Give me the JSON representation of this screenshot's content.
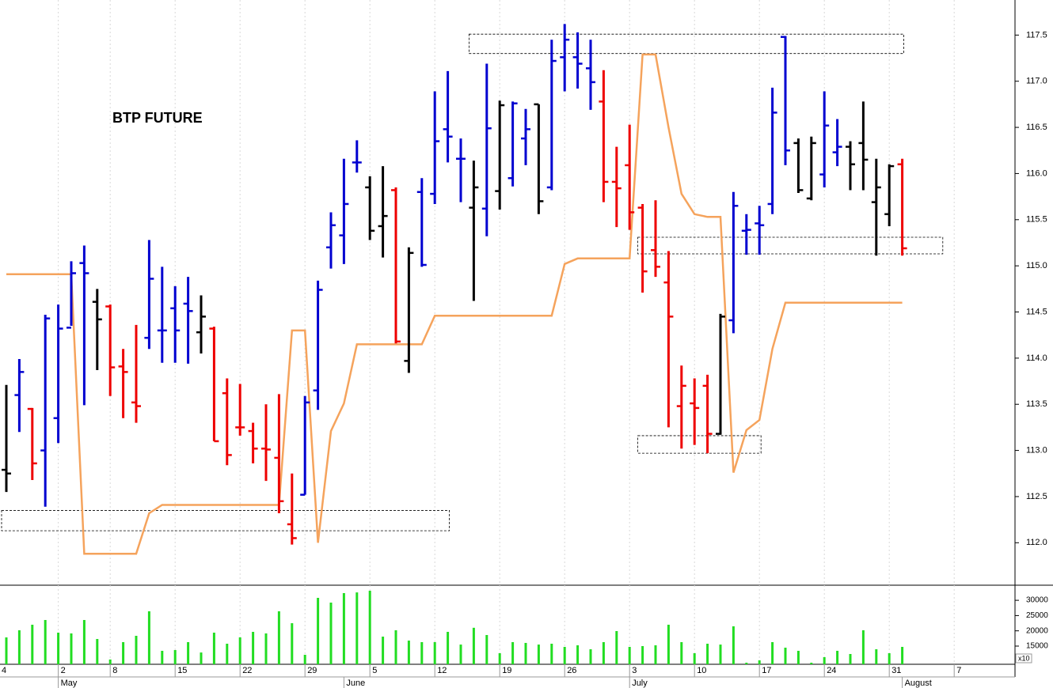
{
  "chart_data": {
    "type": "ohlc",
    "title": "BTP FUTURE",
    "categories": [
      "4",
      null,
      null,
      null,
      null,
      "2",
      null,
      null,
      null,
      "8",
      null,
      null,
      null,
      null,
      "15",
      null,
      null,
      null,
      null,
      "22",
      null,
      null,
      null,
      null,
      "29",
      null,
      null,
      null,
      null,
      "5",
      null,
      null,
      null,
      null,
      "12",
      null,
      null,
      null,
      null,
      "19",
      null,
      null,
      null,
      null,
      "26",
      null,
      null,
      null,
      null,
      "3",
      null,
      null,
      null,
      null,
      "10",
      null,
      null,
      null,
      null,
      "17",
      null,
      null,
      null,
      null,
      "24",
      null,
      null,
      null,
      null,
      "31",
      null,
      null,
      null,
      null,
      "7",
      null,
      null,
      null,
      null
    ],
    "months": [
      {
        "label": "May",
        "index": 5
      },
      {
        "label": "June",
        "index": 27
      },
      {
        "label": "July",
        "index": 49
      },
      {
        "label": "August",
        "index": 70
      }
    ],
    "open": [
      null,
      112.79,
      113.6,
      113.45,
      113.0,
      113.35,
      114.33,
      115.03,
      114.61,
      114.56,
      113.91,
      113.52,
      114.22,
      114.3,
      114.54,
      114.59,
      114.28,
      114.32,
      113.62,
      113.25,
      113.21,
      113.02,
      112.92,
      112.2,
      112.52,
      113.65,
      115.2,
      115.33,
      116.12,
      115.85,
      115.43,
      115.82,
      113.97,
      115.8,
      115.78,
      116.48,
      116.16,
      115.63,
      115.62,
      115.81,
      115.95,
      116.38,
      116.75,
      115.85,
      117.26,
      117.26,
      117.14,
      116.78,
      115.91,
      116.09,
      115.63,
      115.17,
      114.82,
      113.48,
      113.51,
      113.7,
      113.18,
      114.41,
      115.38,
      115.46,
      115.67,
      117.48,
      116.33,
      115.73,
      115.99,
      116.23,
      116.29,
      116.33,
      115.69,
      115.56,
      116.1,
      null,
      null,
      null,
      null,
      null,
      null,
      null,
      null
    ],
    "high": [
      null,
      113.71,
      113.99,
      113.46,
      114.47,
      114.58,
      115.05,
      115.22,
      114.75,
      114.58,
      114.1,
      114.36,
      115.28,
      114.99,
      114.78,
      114.88,
      114.68,
      114.34,
      113.78,
      113.72,
      113.3,
      113.5,
      113.61,
      112.75,
      113.59,
      114.84,
      115.58,
      116.16,
      116.36,
      115.97,
      116.08,
      115.85,
      115.2,
      115.95,
      116.89,
      117.11,
      116.38,
      116.14,
      117.19,
      116.79,
      116.78,
      116.7,
      116.75,
      117.45,
      117.62,
      117.53,
      117.45,
      117.12,
      116.29,
      116.53,
      115.67,
      115.71,
      115.16,
      113.92,
      113.78,
      113.82,
      114.48,
      115.8,
      115.56,
      115.65,
      116.93,
      117.49,
      116.38,
      116.4,
      116.89,
      116.59,
      116.35,
      116.78,
      116.16,
      116.1,
      116.16,
      null,
      null,
      null,
      null,
      null,
      null,
      null,
      null
    ],
    "low": [
      null,
      112.55,
      113.2,
      112.68,
      112.39,
      113.08,
      114.35,
      113.49,
      113.87,
      113.59,
      113.35,
      113.3,
      114.1,
      113.95,
      113.95,
      113.94,
      114.05,
      113.1,
      112.84,
      113.16,
      112.86,
      112.67,
      112.32,
      111.98,
      112.52,
      113.44,
      114.97,
      115.02,
      116.01,
      115.28,
      115.09,
      114.16,
      113.84,
      114.99,
      115.67,
      116.12,
      115.69,
      114.62,
      115.32,
      115.61,
      115.86,
      116.09,
      115.56,
      115.82,
      116.89,
      116.92,
      116.69,
      115.69,
      115.42,
      115.39,
      114.71,
      114.88,
      113.25,
      113.02,
      113.06,
      112.97,
      113.17,
      114.27,
      115.12,
      115.12,
      115.56,
      116.09,
      115.79,
      115.71,
      115.85,
      116.08,
      115.82,
      115.82,
      115.11,
      115.43,
      115.11,
      null,
      null,
      null,
      null,
      null,
      null,
      null,
      null
    ],
    "close": [
      null,
      112.75,
      113.85,
      112.86,
      114.43,
      114.32,
      114.92,
      114.92,
      114.42,
      113.9,
      113.85,
      113.48,
      114.86,
      114.3,
      114.3,
      114.51,
      114.45,
      113.1,
      112.95,
      113.25,
      113.02,
      113.01,
      112.45,
      112.05,
      113.52,
      114.74,
      115.44,
      115.67,
      116.12,
      115.38,
      115.54,
      114.18,
      115.14,
      115.01,
      116.35,
      116.4,
      116.16,
      115.85,
      116.49,
      116.74,
      116.76,
      116.48,
      115.7,
      117.22,
      117.45,
      117.19,
      116.99,
      115.91,
      115.84,
      115.58,
      114.94,
      114.99,
      114.45,
      113.7,
      113.46,
      113.18,
      114.45,
      115.65,
      115.39,
      115.44,
      116.66,
      116.25,
      115.82,
      116.33,
      116.52,
      116.29,
      116.1,
      116.15,
      115.85,
      116.08,
      115.19,
      null,
      null,
      null,
      null,
      null,
      null,
      null,
      null
    ],
    "bar_colors": [
      null,
      "#000000",
      "#0000d0",
      "#ee0000",
      "#0000d0",
      "#0000d0",
      "#0000d0",
      "#0000d0",
      "#000000",
      "#ee0000",
      "#ee0000",
      "#ee0000",
      "#0000d0",
      "#0000d0",
      "#0000d0",
      "#0000d0",
      "#000000",
      "#ee0000",
      "#ee0000",
      "#ee0000",
      "#ee0000",
      "#ee0000",
      "#ee0000",
      "#ee0000",
      "#0000d0",
      "#0000d0",
      "#0000d0",
      "#0000d0",
      "#0000d0",
      "#000000",
      "#000000",
      "#ee0000",
      "#000000",
      "#0000d0",
      "#0000d0",
      "#0000d0",
      "#0000d0",
      "#000000",
      "#0000d0",
      "#000000",
      "#0000d0",
      "#0000d0",
      "#000000",
      "#0000d0",
      "#0000d0",
      "#0000d0",
      "#0000d0",
      "#ee0000",
      "#ee0000",
      "#ee0000",
      "#ee0000",
      "#ee0000",
      "#ee0000",
      "#ee0000",
      "#ee0000",
      "#ee0000",
      "#000000",
      "#0000d0",
      "#0000d0",
      "#0000d0",
      "#0000d0",
      "#0000d0",
      "#000000",
      "#000000",
      "#0000d0",
      "#0000d0",
      "#000000",
      "#000000",
      "#000000",
      "#000000",
      "#ee0000",
      null,
      null,
      null,
      null,
      null,
      null,
      null,
      null
    ],
    "ylim": [
      111.54,
      117.88
    ],
    "yticks": [
      {
        "value": 112,
        "label": "112.0"
      },
      112.5,
      {
        "value": 113,
        "label": "113.0"
      },
      113.5,
      {
        "value": 114,
        "label": "114.0"
      },
      114.5,
      {
        "value": 115,
        "label": "115.0"
      },
      115.5,
      {
        "value": 116,
        "label": "116.0"
      },
      116.5,
      {
        "value": 117,
        "label": "117.0"
      },
      117.5
    ],
    "line": {
      "color": "#f5a35c",
      "values": [
        null,
        114.91,
        114.91,
        114.91,
        114.91,
        114.91,
        114.91,
        111.88,
        111.88,
        111.88,
        111.88,
        111.88,
        112.32,
        112.41,
        112.41,
        112.41,
        112.41,
        112.41,
        112.41,
        112.41,
        112.41,
        112.41,
        112.41,
        114.3,
        114.3,
        112.0,
        113.21,
        113.51,
        114.15,
        114.15,
        114.15,
        114.15,
        114.15,
        114.15,
        114.46,
        114.46,
        114.46,
        114.46,
        114.46,
        114.46,
        114.46,
        114.46,
        114.46,
        114.46,
        115.02,
        115.08,
        115.08,
        115.08,
        115.08,
        115.08,
        117.29,
        117.29,
        116.5,
        115.78,
        115.56,
        115.53,
        115.53,
        112.76,
        113.22,
        113.33,
        114.1,
        114.6,
        114.6,
        114.6,
        114.6,
        114.6,
        114.6,
        114.6,
        114.6,
        114.6,
        114.6,
        null,
        null,
        null,
        null,
        null,
        null,
        null,
        null
      ]
    },
    "volume": {
      "color": "#22dd22",
      "unit_label": "x10",
      "ylim": [
        9040,
        34950
      ],
      "yticks": [
        15000,
        20000,
        25000,
        30000
      ],
      "values": [
        null,
        17850,
        20180,
        22000,
        23550,
        19400,
        19150,
        23550,
        17330,
        10600,
        16300,
        18370,
        26400,
        13450,
        13700,
        16300,
        12900,
        19400,
        15780,
        17850,
        19660,
        19150,
        26400,
        22500,
        12150,
        30800,
        29250,
        32360,
        32600,
        33130,
        18100,
        20180,
        16800,
        16300,
        16300,
        19660,
        15500,
        21000,
        18630,
        12670,
        16300,
        16040,
        15500,
        15780,
        14740,
        15260,
        13960,
        16300,
        19920,
        14740,
        15000,
        15260,
        22000,
        16300,
        12670,
        15780,
        15500,
        21480,
        9560,
        10340,
        16300,
        14480,
        13450,
        9560,
        11370,
        13450,
        12410,
        20180,
        13960,
        12670,
        14740,
        null,
        null,
        null,
        null,
        null,
        null,
        null,
        null
      ]
    },
    "boxes": [
      {
        "from": 1,
        "to": 35,
        "low": 112.13,
        "high": 112.35
      },
      {
        "from": 37,
        "to": 70,
        "low": 117.3,
        "high": 117.51
      },
      {
        "from": 50,
        "to": 73,
        "low": 115.13,
        "high": 115.31
      },
      {
        "from": 50,
        "to": 59,
        "low": 112.97,
        "high": 113.16
      }
    ],
    "grid": true
  }
}
